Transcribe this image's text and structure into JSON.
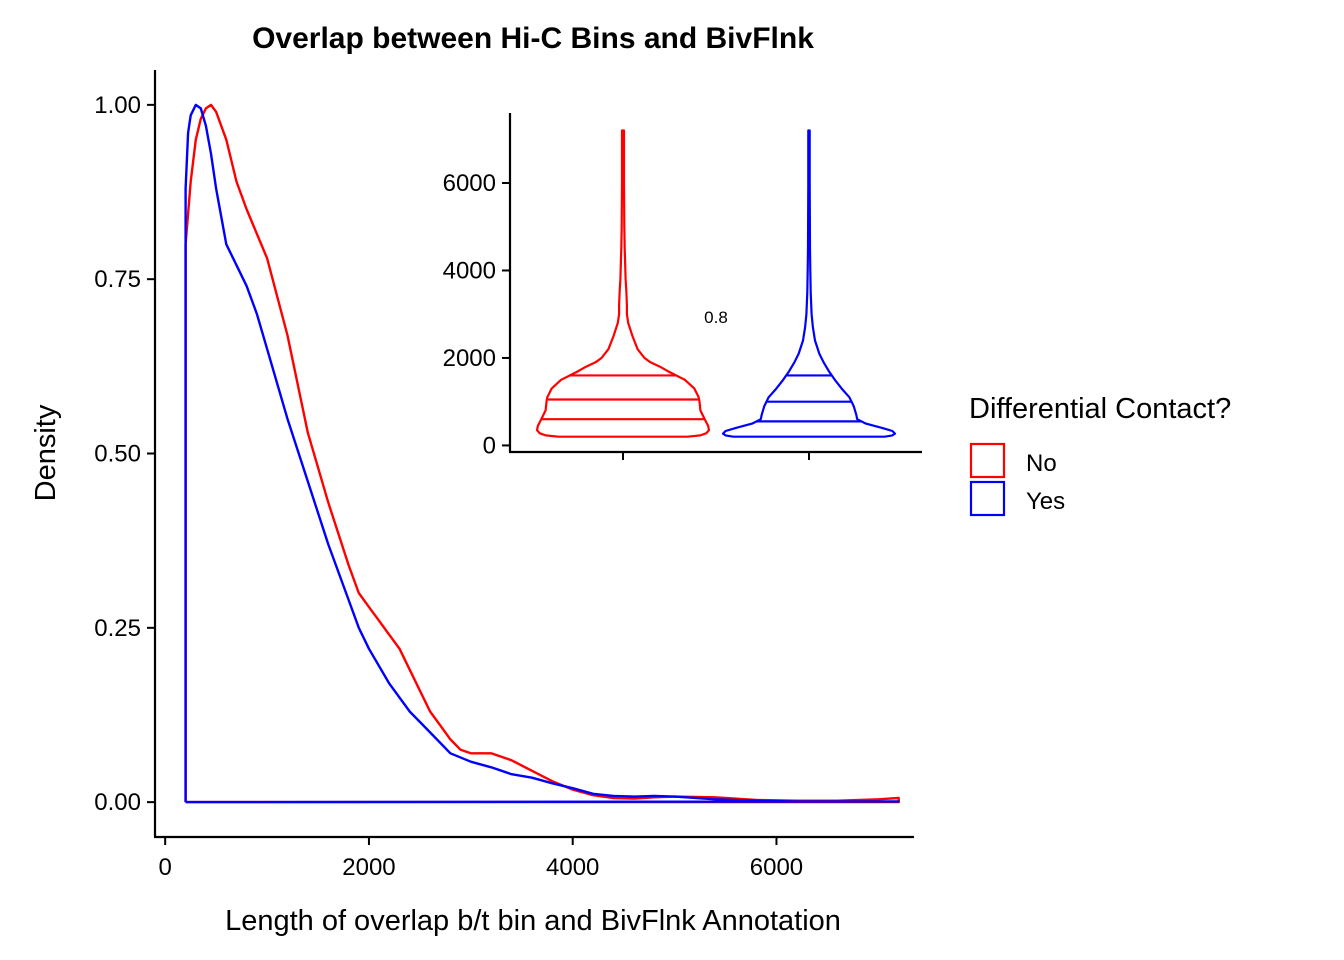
{
  "chart_data": [
    {
      "type": "line",
      "subtype": "density",
      "title": "Overlap between Hi-C Bins and BivFlnk",
      "xlabel": "Length of overlap b/t bin and BivFlnk Annotation",
      "ylabel": "Density",
      "xlim": [
        -100,
        7350
      ],
      "ylim": [
        -0.05,
        1.05
      ],
      "xticks": [
        0,
        2000,
        4000,
        6000
      ],
      "xtick_labels": [
        "0",
        "2000",
        "4000",
        "6000"
      ],
      "yticks": [
        0,
        0.25,
        0.5,
        0.75,
        1.0
      ],
      "ytick_labels": [
        "0.00",
        "0.25",
        "0.50",
        "0.75",
        "1.00"
      ],
      "grid": false,
      "legend": {
        "title": "Differential Contact?",
        "position": "right",
        "entries": [
          "No",
          "Yes"
        ]
      },
      "series": [
        {
          "name": "No",
          "color": "#FF0000",
          "x": [
            200,
            200,
            250,
            300,
            350,
            400,
            450,
            500,
            600,
            700,
            800,
            1000,
            1200,
            1400,
            1600,
            1800,
            1900,
            2000,
            2100,
            2200,
            2300,
            2400,
            2500,
            2600,
            2700,
            2800,
            2900,
            3000,
            3200,
            3400,
            3600,
            3800,
            4000,
            4200,
            4400,
            4600,
            4800,
            5000,
            5400,
            5800,
            6200,
            6600,
            7000,
            7200,
            7200,
            200
          ],
          "y": [
            0,
            0.8,
            0.89,
            0.95,
            0.98,
            0.995,
            1.0,
            0.99,
            0.95,
            0.89,
            0.85,
            0.78,
            0.67,
            0.53,
            0.43,
            0.34,
            0.3,
            0.28,
            0.26,
            0.24,
            0.22,
            0.19,
            0.16,
            0.13,
            0.11,
            0.09,
            0.075,
            0.07,
            0.07,
            0.06,
            0.045,
            0.03,
            0.018,
            0.01,
            0.006,
            0.005,
            0.007,
            0.008,
            0.007,
            0.003,
            0.002,
            0.002,
            0.004,
            0.006,
            0,
            0
          ]
        },
        {
          "name": "Yes",
          "color": "#0000FF",
          "x": [
            200,
            200,
            225,
            250,
            300,
            350,
            400,
            450,
            500,
            600,
            700,
            800,
            900,
            1000,
            1200,
            1400,
            1600,
            1800,
            1900,
            2000,
            2200,
            2400,
            2600,
            2800,
            3000,
            3200,
            3400,
            3600,
            3800,
            4000,
            4200,
            4400,
            4600,
            4800,
            5000,
            5400,
            5800,
            6200,
            6600,
            7000,
            7200,
            200
          ],
          "y": [
            0,
            0.88,
            0.96,
            0.985,
            1.0,
            0.995,
            0.97,
            0.93,
            0.88,
            0.8,
            0.77,
            0.74,
            0.7,
            0.65,
            0.55,
            0.46,
            0.37,
            0.29,
            0.25,
            0.22,
            0.17,
            0.13,
            0.1,
            0.07,
            0.058,
            0.05,
            0.04,
            0.035,
            0.027,
            0.02,
            0.012,
            0.009,
            0.008,
            0.009,
            0.008,
            0.004,
            0.002,
            0.001,
            0.001,
            0.001,
            0.001,
            0
          ]
        }
      ]
    },
    {
      "type": "violin",
      "ylim": [
        -150,
        7600
      ],
      "yticks": [
        0,
        2000,
        4000,
        6000
      ],
      "ytick_labels": [
        "0",
        "2000",
        "4000",
        "6000"
      ],
      "annotation": "0.8",
      "series": [
        {
          "name": "No",
          "color": "#FF0000",
          "quantiles": [
            600,
            1050,
            1600
          ],
          "profile_y": [
            200,
            230,
            280,
            350,
            450,
            600,
            800,
            1000,
            1100,
            1300,
            1500,
            1600,
            1700,
            1800,
            1900,
            2000,
            2200,
            2500,
            2800,
            3000,
            3200,
            3500,
            3800,
            4200,
            4500,
            5000,
            6000,
            7200
          ],
          "profile_halfwidth": [
            0.75,
            0.9,
            0.97,
            1.0,
            0.99,
            0.95,
            0.9,
            0.89,
            0.88,
            0.83,
            0.72,
            0.62,
            0.52,
            0.43,
            0.32,
            0.25,
            0.17,
            0.11,
            0.06,
            0.045,
            0.045,
            0.04,
            0.03,
            0.025,
            0.02,
            0.015,
            0.012,
            0.012
          ]
        },
        {
          "name": "Yes",
          "color": "#0000FF",
          "quantiles": [
            550,
            1000,
            1600
          ],
          "profile_y": [
            200,
            230,
            270,
            330,
            400,
            500,
            600,
            700,
            900,
            1100,
            1300,
            1500,
            1700,
            1900,
            2100,
            2400,
            2700,
            3000,
            3500,
            4000,
            4500,
            5000,
            6000,
            7200
          ],
          "profile_halfwidth": [
            0.88,
            0.97,
            1.0,
            0.97,
            0.85,
            0.66,
            0.56,
            0.55,
            0.52,
            0.47,
            0.38,
            0.3,
            0.23,
            0.17,
            0.12,
            0.07,
            0.045,
            0.03,
            0.02,
            0.015,
            0.012,
            0.01,
            0.008,
            0.008
          ]
        }
      ]
    }
  ]
}
